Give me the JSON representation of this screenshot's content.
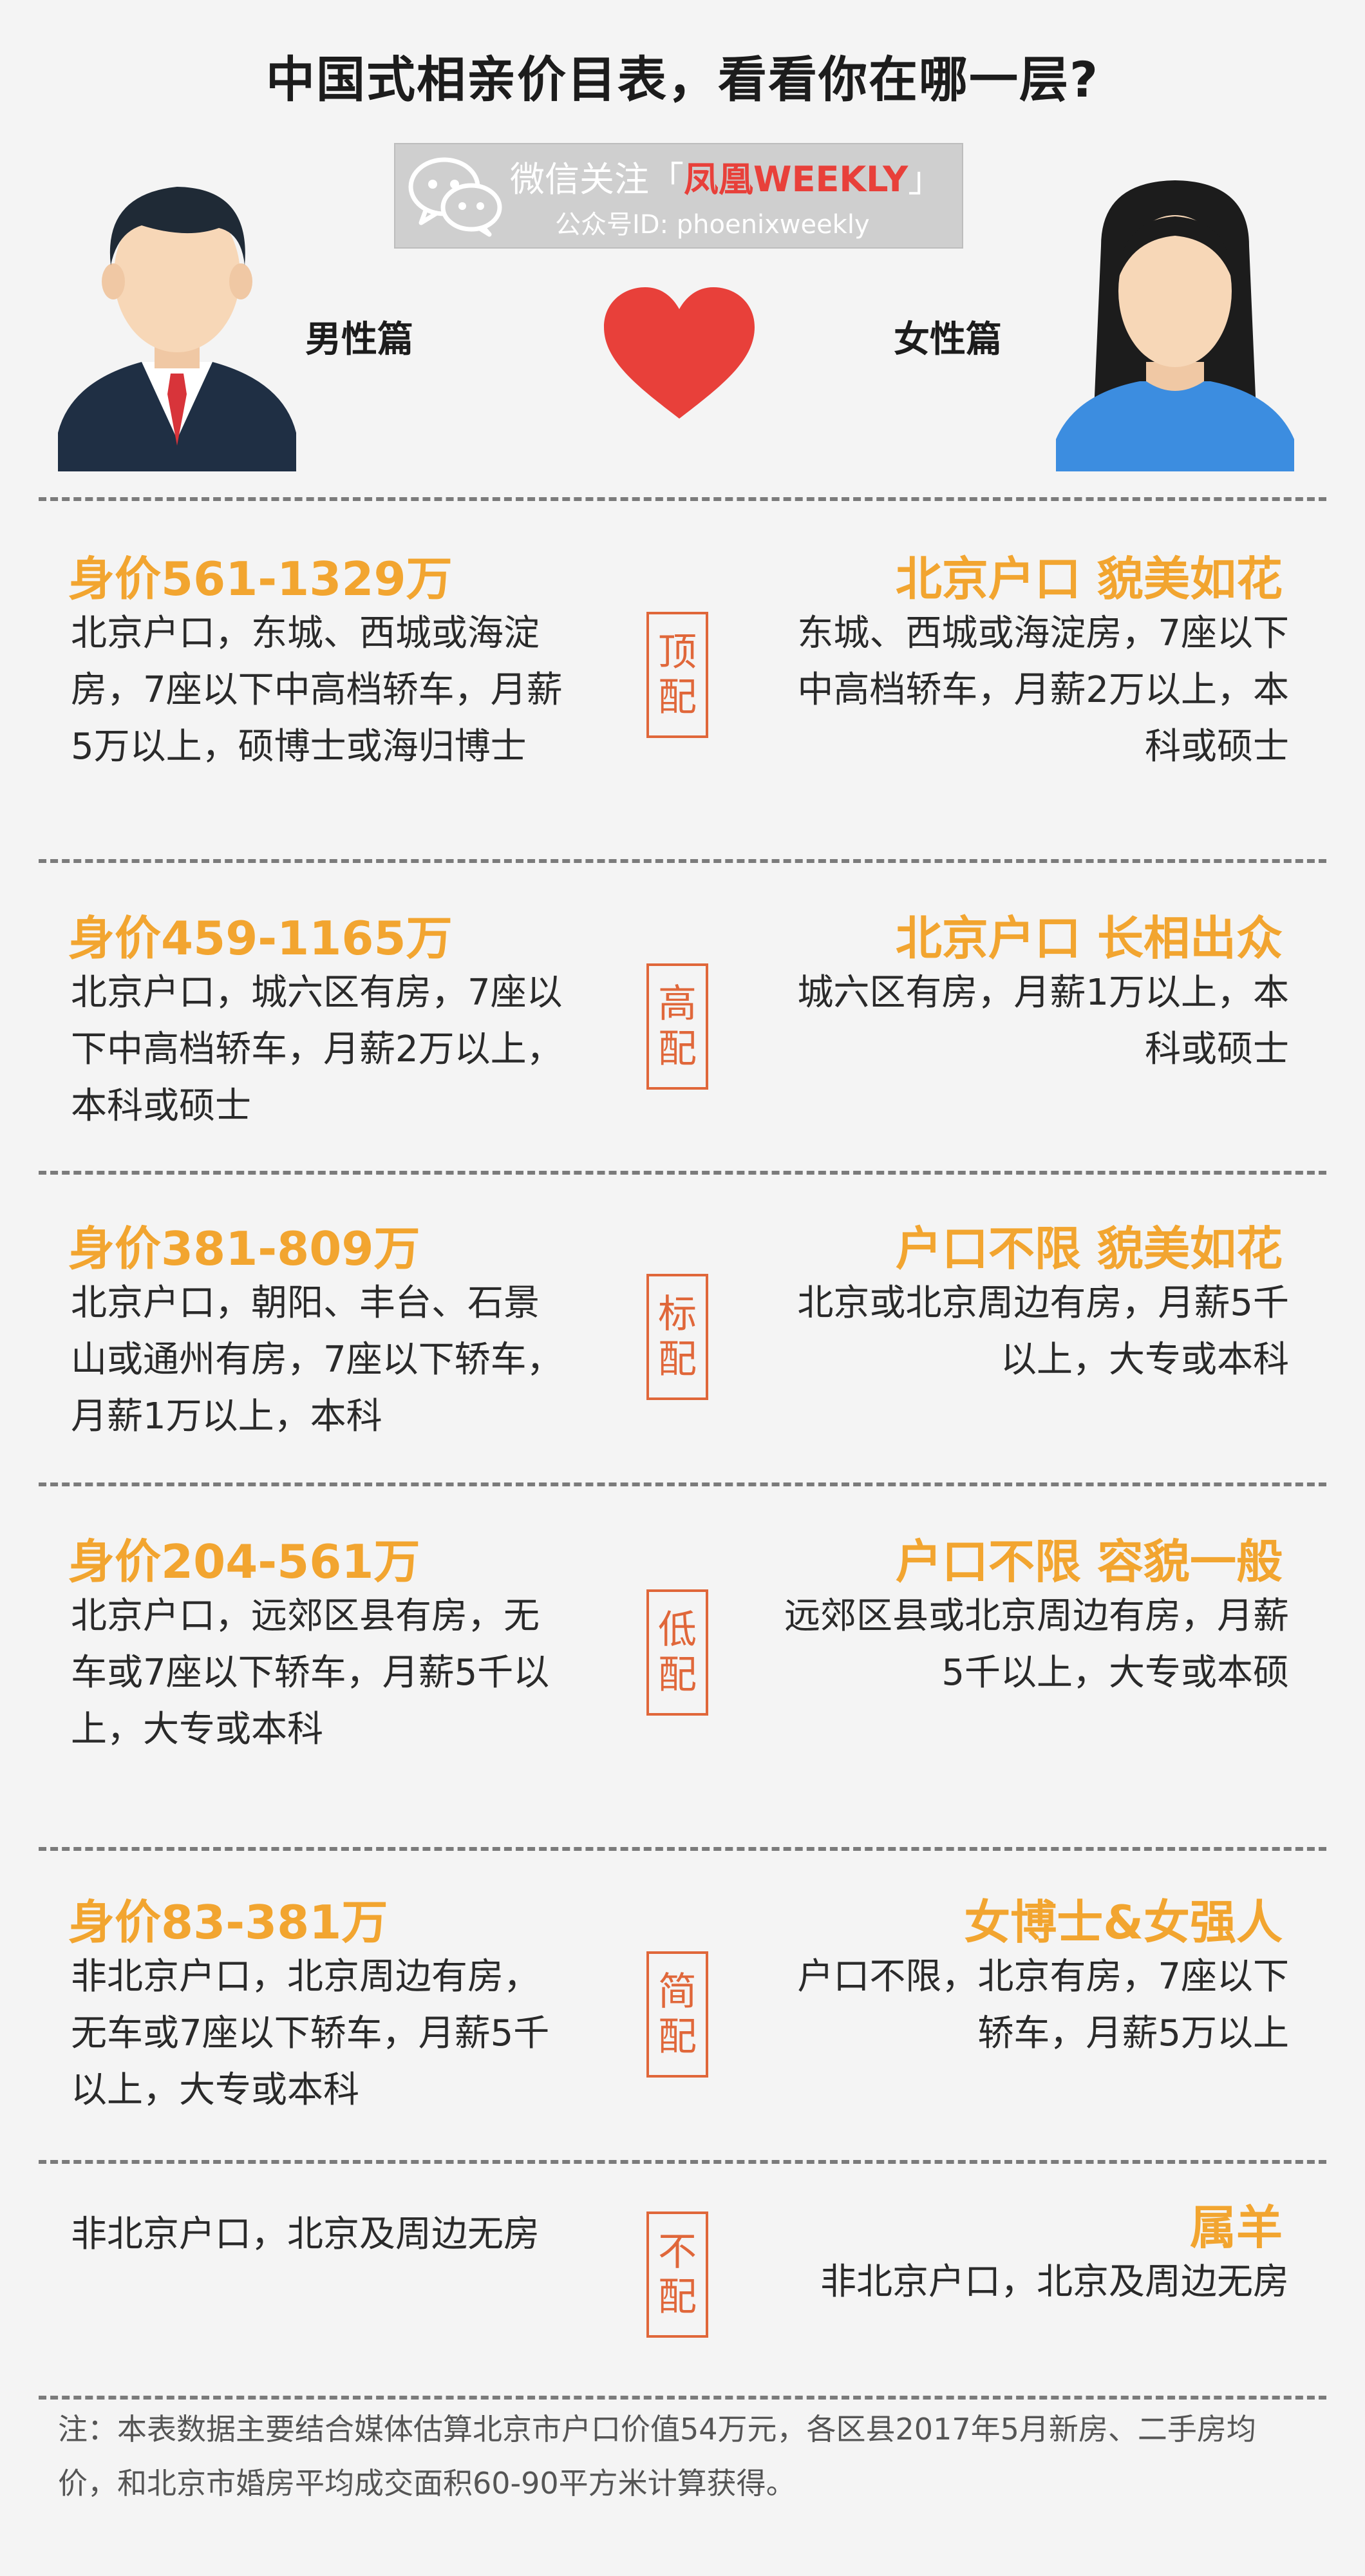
{
  "title": "中国式相亲价目表，看看你在哪一层?",
  "wechat": {
    "follow": "微信关注",
    "bracket_open": "「",
    "brand": "凤凰WEEKLY",
    "bracket_close": "」",
    "account": "公众号ID:  phoenixweekly"
  },
  "male_label": "男性篇",
  "female_label": "女性篇",
  "rows": [
    {
      "male_price": "身价561-1329万",
      "male_desc": "北京户口，东城、西城或海淀房，7座以下中高档轿车，月薪5万以上，硕博士或海归博士",
      "tier": "顶配",
      "female_title": "北京户口 貌美如花",
      "female_desc": "东城、西城或海淀房，7座以下中高档轿车，月薪2万以上，本科或硕士"
    },
    {
      "male_price": "身价459-1165万",
      "male_desc": "北京户口，城六区有房，7座以下中高档轿车，月薪2万以上，本科或硕士",
      "tier": "高配",
      "female_title": "北京户口 长相出众",
      "female_desc": "城六区有房，月薪1万以上，本科或硕士"
    },
    {
      "male_price": "身价381-809万",
      "male_desc": "北京户口，朝阳、丰台、石景山或通州有房，7座以下轿车，月薪1万以上，本科",
      "tier": "标配",
      "female_title": "户口不限 貌美如花",
      "female_desc": "北京或北京周边有房，月薪5千以上，大专或本科"
    },
    {
      "male_price": "身价204-561万",
      "male_desc": "北京户口，远郊区县有房，无车或7座以下轿车，月薪5千以上，大专或本科",
      "tier": "低配",
      "female_title": "户口不限 容貌一般",
      "female_desc": "远郊区县或北京周边有房，月薪5千以上，大专或本硕"
    },
    {
      "male_price": "身价83-381万",
      "male_desc": "非北京户口，北京周边有房，无车或7座以下轿车，月薪5千以上，大专或本科",
      "tier": "简配",
      "female_title": "女博士&女强人",
      "female_desc": "户口不限，北京有房，7座以下轿车，月薪5万以上"
    },
    {
      "male_price": "",
      "male_desc": "非北京户口，北京及周边无房",
      "tier": "不配",
      "female_title": "属羊",
      "female_desc": "非北京户口，北京及周边无房"
    }
  ],
  "footnote": "注：本表数据主要结合媒体估算北京市户口价值54万元，各区县2017年5月新房、二手房均价，和北京市婚房平均成交面积60-90平方米计算获得。",
  "colors": {
    "accent_orange": "#f2a530",
    "tier_red": "#e0673a",
    "heart_red": "#e8403a",
    "background": "#f4f4f4"
  },
  "icons": [
    "wechat-icon",
    "male-avatar-icon",
    "female-avatar-icon",
    "heart-icon"
  ]
}
